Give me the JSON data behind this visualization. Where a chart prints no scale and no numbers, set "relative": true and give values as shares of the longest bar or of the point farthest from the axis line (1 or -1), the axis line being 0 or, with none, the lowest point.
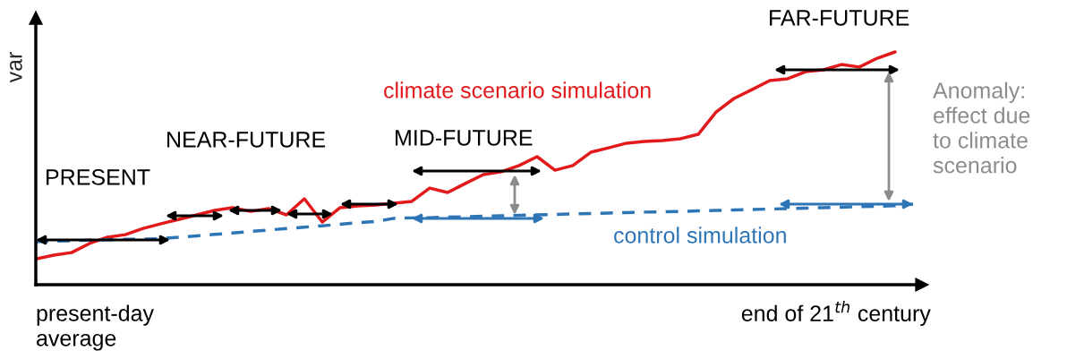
{
  "chart_data": {
    "type": "line",
    "relative": true,
    "ylabel": "var",
    "categories": [
      null,
      null,
      null,
      null,
      null,
      null,
      null,
      null,
      null,
      null,
      null,
      null,
      null,
      null,
      null,
      null,
      null,
      null,
      null,
      null,
      null,
      null,
      null,
      null,
      null,
      null,
      null,
      null,
      null,
      null,
      null,
      null,
      null,
      null,
      null,
      null,
      null,
      null,
      null,
      null,
      null,
      null,
      null,
      null,
      null,
      null,
      null,
      null,
      null,
      null
    ],
    "series": [
      {
        "name": "climate scenario simulation",
        "color": "#e31a1c",
        "line_style": "solid",
        "values": [
          0.11,
          0.127,
          0.138,
          0.177,
          0.204,
          0.215,
          0.242,
          0.262,
          0.281,
          0.3,
          0.319,
          0.331,
          0.315,
          0.327,
          0.3,
          0.369,
          0.269,
          0.331,
          0.338,
          0.342,
          0.35,
          0.358,
          0.415,
          0.396,
          0.435,
          0.473,
          0.485,
          0.512,
          0.55,
          0.492,
          0.512,
          0.569,
          0.588,
          0.608,
          0.615,
          0.619,
          0.627,
          0.646,
          0.742,
          0.8,
          0.838,
          0.877,
          0.885,
          0.915,
          0.923,
          0.946,
          0.935,
          0.973,
          1.0,
          null
        ]
      },
      {
        "name": "control simulation",
        "color": "#2e75b6",
        "line_style": "dashed",
        "values": [
          0.185,
          0.187,
          0.189,
          0.191,
          0.193,
          0.195,
          0.196,
          0.198,
          0.204,
          0.21,
          0.216,
          0.222,
          0.229,
          0.235,
          0.241,
          0.247,
          0.253,
          0.26,
          0.266,
          0.272,
          0.285,
          0.287,
          0.288,
          0.29,
          0.292,
          0.294,
          0.296,
          0.298,
          0.3,
          0.302,
          0.304,
          0.306,
          0.308,
          0.31,
          0.312,
          0.313,
          0.315,
          0.317,
          0.319,
          0.321,
          0.323,
          0.325,
          0.327,
          0.329,
          0.331,
          0.333,
          0.335,
          0.337,
          0.339,
          0.346
        ]
      }
    ],
    "annotations": [
      "PRESENT",
      "NEAR-FUTURE",
      "MID-FUTURE",
      "FAR-FUTURE",
      "Anomaly:\neffect due\nto climate\nscenario",
      "present-day\naverage",
      "end of 21$^{th}$ century"
    ]
  }
}
